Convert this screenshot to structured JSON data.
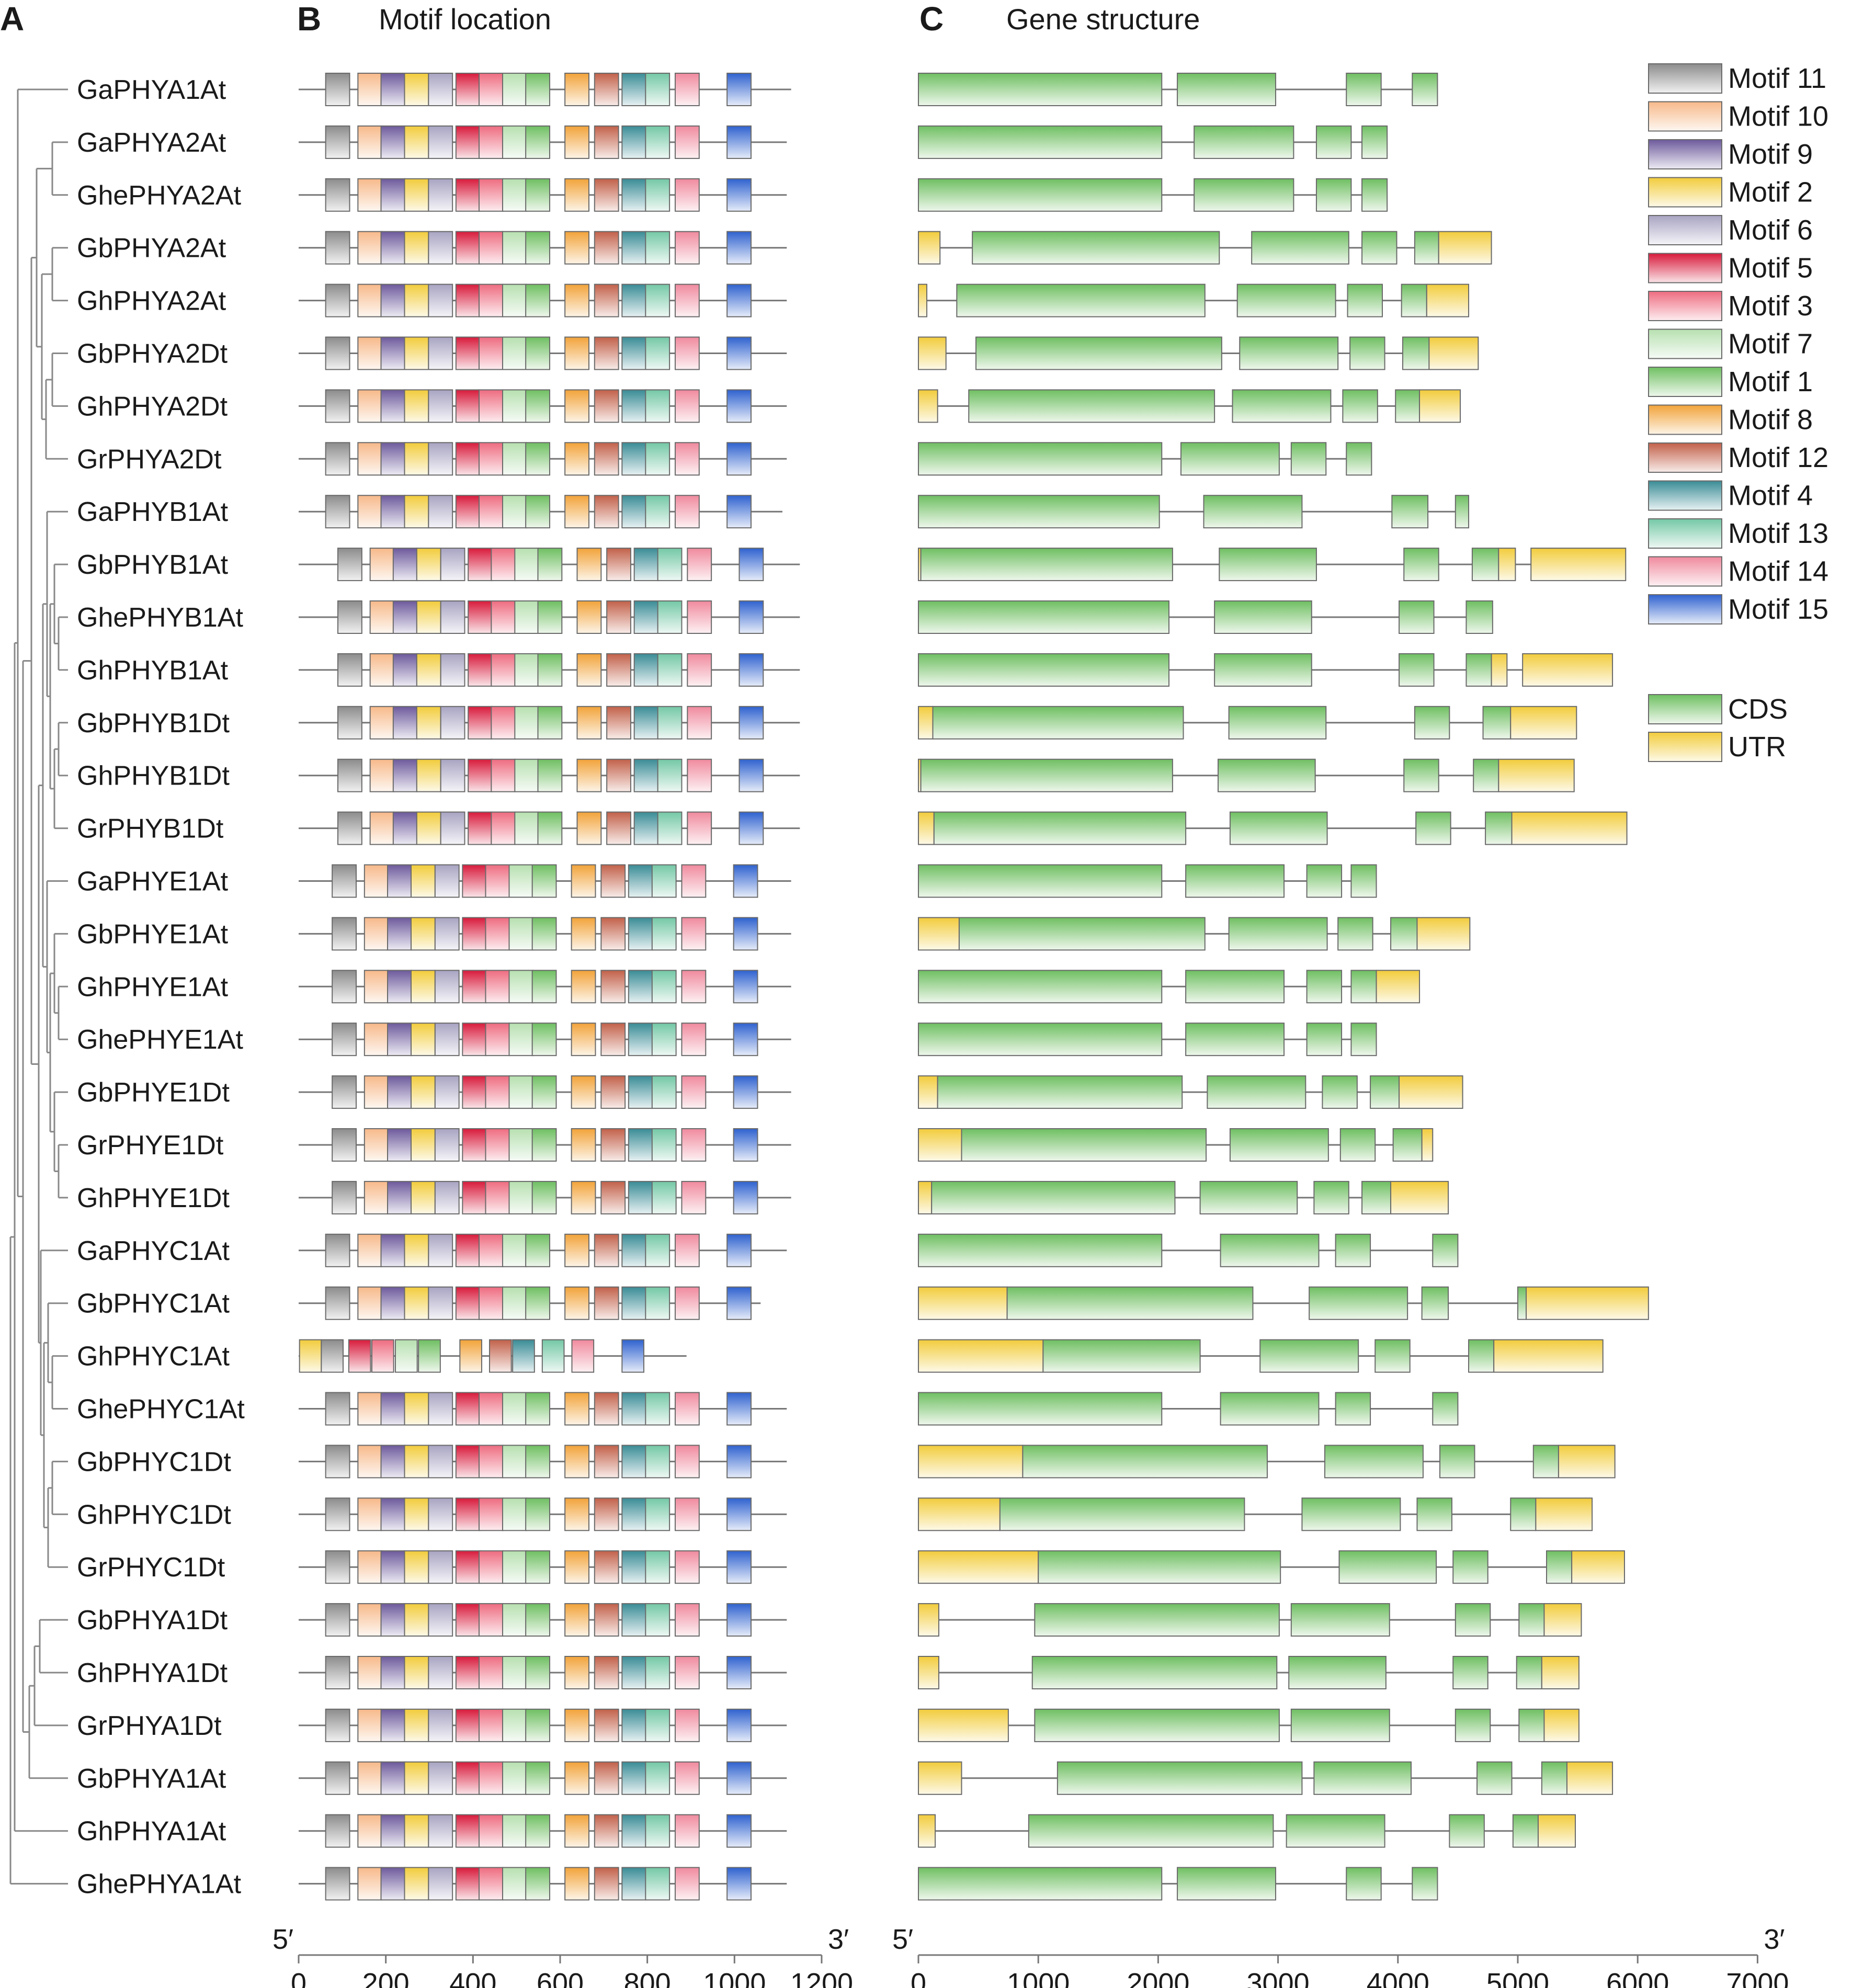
{
  "panels": {
    "a": {
      "letter": "A"
    },
    "b": {
      "letter": "B",
      "title": "Motif location"
    },
    "c": {
      "letter": "C",
      "title": "Gene structure"
    }
  },
  "genes": [
    "GaPHYA1At",
    "GaPHYA2At",
    "GhePHYA2At",
    "GbPHYA2At",
    "GhPHYA2At",
    "GbPHYA2Dt",
    "GhPHYA2Dt",
    "GrPHYA2Dt",
    "GaPHYB1At",
    "GbPHYB1At",
    "GhePHYB1At",
    "GhPHYB1At",
    "GbPHYB1Dt",
    "GhPHYB1Dt",
    "GrPHYB1Dt",
    "GaPHYE1At",
    "GbPHYE1At",
    "GhPHYE1At",
    "GhePHYE1At",
    "GbPHYE1Dt",
    "GrPHYE1Dt",
    "GhPHYE1Dt",
    "GaPHYC1At",
    "GbPHYC1At",
    "GhPHYC1At",
    "GhePHYC1At",
    "GbPHYC1Dt",
    "GhPHYC1Dt",
    "GrPHYC1Dt",
    "GbPHYA1Dt",
    "GhPHYA1Dt",
    "GrPHYA1Dt",
    "GbPHYA1At",
    "GhPHYA1At",
    "GhePHYA1At"
  ],
  "motif_legend": [
    {
      "label": "Motif 11",
      "color": "#8c8c8c"
    },
    {
      "label": "Motif 10",
      "color": "#f7b98a"
    },
    {
      "label": "Motif 9",
      "color": "#6d5a9c"
    },
    {
      "label": "Motif 2",
      "color": "#f2cc3c"
    },
    {
      "label": "Motif 6",
      "color": "#a8a4c2"
    },
    {
      "label": "Motif 5",
      "color": "#d81b3c"
    },
    {
      "label": "Motif 3",
      "color": "#ee6c80"
    },
    {
      "label": "Motif 7",
      "color": "#b7e0b0"
    },
    {
      "label": "Motif 1",
      "color": "#6fbf62"
    },
    {
      "label": "Motif 8",
      "color": "#f2a33a"
    },
    {
      "label": "Motif 12",
      "color": "#c2614a"
    },
    {
      "label": "Motif 4",
      "color": "#3a8c96"
    },
    {
      "label": "Motif 13",
      "color": "#74c8a6"
    },
    {
      "label": "Motif 14",
      "color": "#f08a9e"
    },
    {
      "label": "Motif 15",
      "color": "#2f62cf"
    }
  ],
  "structure_legend": [
    {
      "label": "CDS",
      "color": "#6fbf62"
    },
    {
      "label": "UTR",
      "color": "#f2cc3c"
    }
  ],
  "motif_axis": {
    "left": "5′",
    "right": "3′",
    "min": 0,
    "max": 1200,
    "ticks": [
      0,
      200,
      400,
      600,
      800,
      1000,
      1200
    ]
  },
  "structure_axis": {
    "left": "5′",
    "right": "3′",
    "min": 0,
    "max": 7000,
    "ticks": [
      0,
      1000,
      2000,
      3000,
      4000,
      5000,
      6000,
      7000
    ]
  },
  "chart_data": {
    "type": "gene structure diagram",
    "motif_template": {
      "order": [
        11,
        10,
        9,
        2,
        6,
        5,
        3,
        7,
        1,
        8,
        12,
        4,
        13,
        14,
        15
      ],
      "starts": [
        62,
        136,
        189,
        243,
        298,
        361,
        414,
        468,
        521,
        611,
        679,
        742,
        796,
        864,
        983
      ],
      "width": 55
    },
    "motif_lines": [
      1130,
      1120,
      1120,
      1120,
      1120,
      1120,
      1120,
      1120,
      1110,
      1150,
      1150,
      1150,
      1150,
      1150,
      1150,
      1130,
      1130,
      1130,
      1130,
      1130,
      1130,
      1130,
      1120,
      1060,
      890,
      1120,
      1120,
      1120,
      1120,
      1120,
      1120,
      1120,
      1120,
      1120,
      1120
    ],
    "motif_shift": [
      0,
      0,
      0,
      0,
      0,
      0,
      0,
      0,
      0,
      28,
      28,
      28,
      28,
      28,
      28,
      15,
      15,
      15,
      15,
      15,
      15,
      15,
      0,
      0,
      0,
      0,
      0,
      0,
      0,
      0,
      0,
      0,
      0,
      0,
      0
    ],
    "phyc1at_motifs": {
      "order": [
        2,
        11,
        5,
        3,
        7,
        1,
        8,
        12,
        4,
        13,
        14,
        15
      ],
      "starts": [
        2,
        52,
        115,
        168,
        222,
        275,
        370,
        438,
        491,
        559,
        627,
        742
      ],
      "width": 50
    },
    "gene_structures": [
      [
        [
          0,
          2030,
          "C"
        ],
        [
          2160,
          2980,
          "C"
        ],
        [
          3570,
          3860,
          "C"
        ],
        [
          4120,
          4330,
          "C"
        ]
      ],
      [
        [
          0,
          2030,
          "C"
        ],
        [
          2300,
          3130,
          "C"
        ],
        [
          3320,
          3610,
          "C"
        ],
        [
          3700,
          3910,
          "C"
        ]
      ],
      [
        [
          0,
          2030,
          "C"
        ],
        [
          2300,
          3130,
          "C"
        ],
        [
          3320,
          3610,
          "C"
        ],
        [
          3700,
          3910,
          "C"
        ]
      ],
      [
        [
          0,
          180,
          "U"
        ],
        [
          450,
          2510,
          "C"
        ],
        [
          2780,
          3590,
          "C"
        ],
        [
          3700,
          3990,
          "C"
        ],
        [
          4140,
          4340,
          "C"
        ],
        [
          4340,
          4780,
          "U"
        ]
      ],
      [
        [
          0,
          70,
          "U"
        ],
        [
          320,
          2390,
          "C"
        ],
        [
          2660,
          3480,
          "C"
        ],
        [
          3580,
          3870,
          "C"
        ],
        [
          4030,
          4240,
          "C"
        ],
        [
          4240,
          4590,
          "U"
        ]
      ],
      [
        [
          0,
          230,
          "U"
        ],
        [
          480,
          2530,
          "C"
        ],
        [
          2680,
          3500,
          "C"
        ],
        [
          3600,
          3890,
          "C"
        ],
        [
          4040,
          4260,
          "C"
        ],
        [
          4260,
          4670,
          "U"
        ]
      ],
      [
        [
          0,
          160,
          "U"
        ],
        [
          420,
          2470,
          "C"
        ],
        [
          2620,
          3440,
          "C"
        ],
        [
          3540,
          3830,
          "C"
        ],
        [
          3980,
          4180,
          "C"
        ],
        [
          4180,
          4520,
          "U"
        ]
      ],
      [
        [
          0,
          2030,
          "C"
        ],
        [
          2190,
          3010,
          "C"
        ],
        [
          3110,
          3400,
          "C"
        ],
        [
          3570,
          3780,
          "C"
        ]
      ],
      [
        [
          0,
          2010,
          "C"
        ],
        [
          2380,
          3200,
          "C"
        ],
        [
          3950,
          4250,
          "C"
        ],
        [
          4480,
          4590,
          "C"
        ]
      ],
      [
        [
          0,
          20,
          "U"
        ],
        [
          20,
          2120,
          "C"
        ],
        [
          2510,
          3320,
          "C"
        ],
        [
          4050,
          4340,
          "C"
        ],
        [
          4620,
          4840,
          "C"
        ],
        [
          4840,
          4980,
          "U"
        ],
        [
          5110,
          5900,
          "U"
        ]
      ],
      [
        [
          0,
          2090,
          "C"
        ],
        [
          2470,
          3280,
          "C"
        ],
        [
          4010,
          4300,
          "C"
        ],
        [
          4570,
          4790,
          "C"
        ]
      ],
      [
        [
          0,
          2090,
          "C"
        ],
        [
          2470,
          3280,
          "C"
        ],
        [
          4010,
          4300,
          "C"
        ],
        [
          4570,
          4780,
          "C"
        ],
        [
          4780,
          4910,
          "U"
        ],
        [
          5040,
          5790,
          "U"
        ]
      ],
      [
        [
          0,
          120,
          "U"
        ],
        [
          120,
          2210,
          "C"
        ],
        [
          2590,
          3400,
          "C"
        ],
        [
          4140,
          4430,
          "C"
        ],
        [
          4710,
          4940,
          "C"
        ],
        [
          4940,
          5490,
          "U"
        ]
      ],
      [
        [
          0,
          20,
          "U"
        ],
        [
          20,
          2120,
          "C"
        ],
        [
          2500,
          3310,
          "C"
        ],
        [
          4050,
          4340,
          "C"
        ],
        [
          4630,
          4840,
          "C"
        ],
        [
          4840,
          5470,
          "U"
        ]
      ],
      [
        [
          0,
          130,
          "U"
        ],
        [
          130,
          2230,
          "C"
        ],
        [
          2600,
          3410,
          "C"
        ],
        [
          4150,
          4440,
          "C"
        ],
        [
          4730,
          4950,
          "C"
        ],
        [
          4950,
          5910,
          "U"
        ]
      ],
      [
        [
          0,
          2030,
          "C"
        ],
        [
          2230,
          3050,
          "C"
        ],
        [
          3240,
          3530,
          "C"
        ],
        [
          3610,
          3820,
          "C"
        ]
      ],
      [
        [
          0,
          340,
          "U"
        ],
        [
          340,
          2390,
          "C"
        ],
        [
          2590,
          3410,
          "C"
        ],
        [
          3500,
          3790,
          "C"
        ],
        [
          3940,
          4160,
          "C"
        ],
        [
          4160,
          4600,
          "U"
        ]
      ],
      [
        [
          0,
          2030,
          "C"
        ],
        [
          2230,
          3050,
          "C"
        ],
        [
          3240,
          3530,
          "C"
        ],
        [
          3610,
          3820,
          "C"
        ],
        [
          3820,
          4180,
          "U"
        ]
      ],
      [
        [
          0,
          2030,
          "C"
        ],
        [
          2230,
          3050,
          "C"
        ],
        [
          3240,
          3530,
          "C"
        ],
        [
          3610,
          3820,
          "C"
        ]
      ],
      [
        [
          0,
          160,
          "U"
        ],
        [
          160,
          2200,
          "C"
        ],
        [
          2410,
          3230,
          "C"
        ],
        [
          3370,
          3660,
          "C"
        ],
        [
          3770,
          4010,
          "C"
        ],
        [
          4010,
          4540,
          "U"
        ]
      ],
      [
        [
          0,
          360,
          "U"
        ],
        [
          360,
          2400,
          "C"
        ],
        [
          2600,
          3420,
          "C"
        ],
        [
          3520,
          3810,
          "C"
        ],
        [
          3960,
          4200,
          "C"
        ],
        [
          4200,
          4290,
          "U"
        ]
      ],
      [
        [
          0,
          110,
          "U"
        ],
        [
          110,
          2140,
          "C"
        ],
        [
          2350,
          3160,
          "C"
        ],
        [
          3300,
          3590,
          "C"
        ],
        [
          3700,
          3940,
          "C"
        ],
        [
          3940,
          4420,
          "U"
        ]
      ],
      [
        [
          0,
          2030,
          "C"
        ],
        [
          2520,
          3340,
          "C"
        ],
        [
          3480,
          3770,
          "C"
        ],
        [
          4290,
          4500,
          "C"
        ]
      ],
      [
        [
          0,
          740,
          "U"
        ],
        [
          740,
          2790,
          "C"
        ],
        [
          3260,
          4080,
          "C"
        ],
        [
          4200,
          4420,
          "C"
        ],
        [
          5000,
          5070,
          "C"
        ],
        [
          5070,
          6090,
          "U"
        ]
      ],
      [
        [
          0,
          1040,
          "U"
        ],
        [
          1040,
          2350,
          "C"
        ],
        [
          2850,
          3670,
          "C"
        ],
        [
          3810,
          4100,
          "C"
        ],
        [
          4590,
          4800,
          "C"
        ],
        [
          4800,
          5710,
          "U"
        ]
      ],
      [
        [
          0,
          2030,
          "C"
        ],
        [
          2520,
          3340,
          "C"
        ],
        [
          3480,
          3770,
          "C"
        ],
        [
          4290,
          4500,
          "C"
        ]
      ],
      [
        [
          0,
          870,
          "U"
        ],
        [
          870,
          2910,
          "C"
        ],
        [
          3390,
          4210,
          "C"
        ],
        [
          4350,
          4640,
          "C"
        ],
        [
          5130,
          5340,
          "C"
        ],
        [
          5340,
          5810,
          "U"
        ]
      ],
      [
        [
          0,
          680,
          "U"
        ],
        [
          680,
          2720,
          "C"
        ],
        [
          3200,
          4020,
          "C"
        ],
        [
          4160,
          4450,
          "C"
        ],
        [
          4940,
          5150,
          "C"
        ],
        [
          5150,
          5620,
          "U"
        ]
      ],
      [
        [
          0,
          1000,
          "U"
        ],
        [
          1000,
          3020,
          "C"
        ],
        [
          3510,
          4320,
          "C"
        ],
        [
          4460,
          4750,
          "C"
        ],
        [
          5240,
          5450,
          "C"
        ],
        [
          5450,
          5890,
          "U"
        ]
      ],
      [
        [
          0,
          170,
          "U"
        ],
        [
          970,
          3010,
          "C"
        ],
        [
          3110,
          3930,
          "C"
        ],
        [
          4480,
          4770,
          "C"
        ],
        [
          5010,
          5220,
          "C"
        ],
        [
          5220,
          5530,
          "U"
        ]
      ],
      [
        [
          0,
          170,
          "U"
        ],
        [
          950,
          2990,
          "C"
        ],
        [
          3090,
          3900,
          "C"
        ],
        [
          4460,
          4750,
          "C"
        ],
        [
          4990,
          5200,
          "C"
        ],
        [
          5200,
          5510,
          "U"
        ]
      ],
      [
        [
          0,
          750,
          "U"
        ],
        [
          970,
          3010,
          "C"
        ],
        [
          3110,
          3930,
          "C"
        ],
        [
          4480,
          4770,
          "C"
        ],
        [
          5010,
          5220,
          "C"
        ],
        [
          5220,
          5510,
          "U"
        ]
      ],
      [
        [
          0,
          360,
          "U"
        ],
        [
          1160,
          3200,
          "C"
        ],
        [
          3300,
          4110,
          "C"
        ],
        [
          4660,
          4950,
          "C"
        ],
        [
          5200,
          5410,
          "C"
        ],
        [
          5410,
          5790,
          "U"
        ]
      ],
      [
        [
          0,
          140,
          "U"
        ],
        [
          920,
          2960,
          "C"
        ],
        [
          3070,
          3890,
          "C"
        ],
        [
          4430,
          4720,
          "C"
        ],
        [
          4960,
          5170,
          "C"
        ],
        [
          5170,
          5480,
          "U"
        ]
      ],
      [
        [
          0,
          2030,
          "C"
        ],
        [
          2160,
          2980,
          "C"
        ],
        [
          3570,
          3860,
          "C"
        ],
        [
          4120,
          4330,
          "C"
        ]
      ]
    ]
  }
}
